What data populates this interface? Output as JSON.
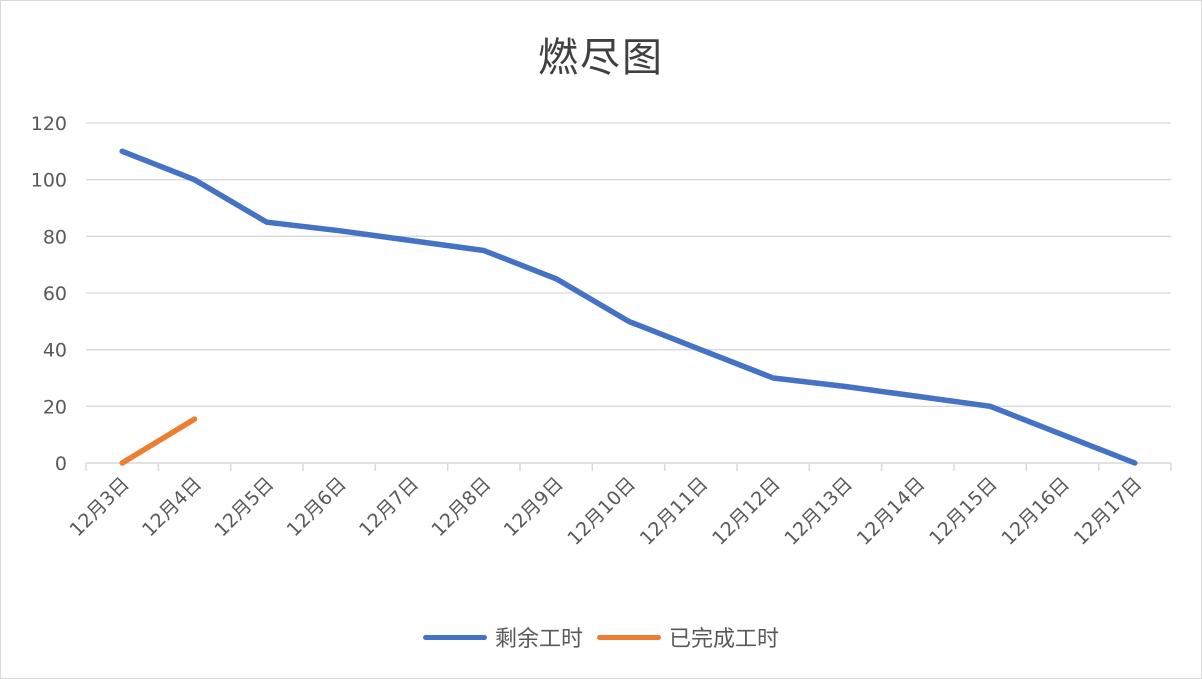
{
  "chart_data": {
    "type": "line",
    "title": "燃尽图",
    "xlabel": "",
    "ylabel": "",
    "categories": [
      "12月3日",
      "12月4日",
      "12月5日",
      "12月6日",
      "12月7日",
      "12月8日",
      "12月9日",
      "12月10日",
      "12月11日",
      "12月12日",
      "12月13日",
      "12月14日",
      "12月15日",
      "12月16日",
      "12月17日"
    ],
    "ylim": [
      0,
      120
    ],
    "yticks": [
      0,
      20,
      40,
      60,
      80,
      100,
      120
    ],
    "grid": true,
    "legend_position": "bottom",
    "series": [
      {
        "name": "剩余工时",
        "color": "#4472C4",
        "values": [
          110,
          100,
          85,
          82,
          78.5,
          75,
          65,
          50,
          40,
          30,
          27,
          23.5,
          20,
          10,
          0
        ]
      },
      {
        "name": "已完成工时",
        "color": "#ED7D31",
        "values": [
          0,
          15.5,
          null,
          null,
          null,
          null,
          null,
          null,
          null,
          null,
          null,
          null,
          null,
          null,
          null
        ]
      }
    ]
  }
}
